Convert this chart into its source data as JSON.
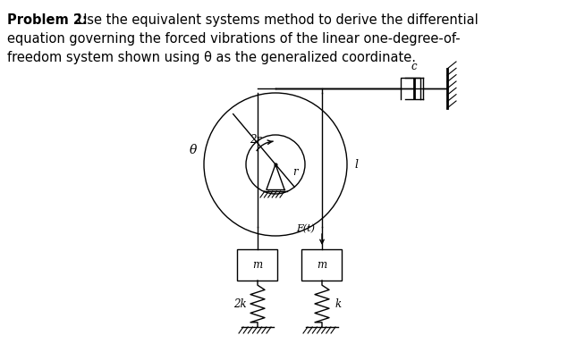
{
  "bg_color": "#ffffff",
  "fig_width": 6.44,
  "fig_height": 3.94,
  "dpi": 100,
  "label_2r": "2r",
  "label_r": "r",
  "label_l": "l",
  "label_theta": "θ",
  "label_c": "c",
  "label_2k": "2k",
  "label_k": "k",
  "label_Ft": "F(t)",
  "label_m": "m",
  "text_line1_bold": "Problem 2:",
  "text_line1_rest": " Use the equivalent systems method to derive the differential",
  "text_line2": "equation governing the forced vibrations of the linear one-degree-of-",
  "text_line3": "freedom system shown using θ as the generalized coordinate."
}
